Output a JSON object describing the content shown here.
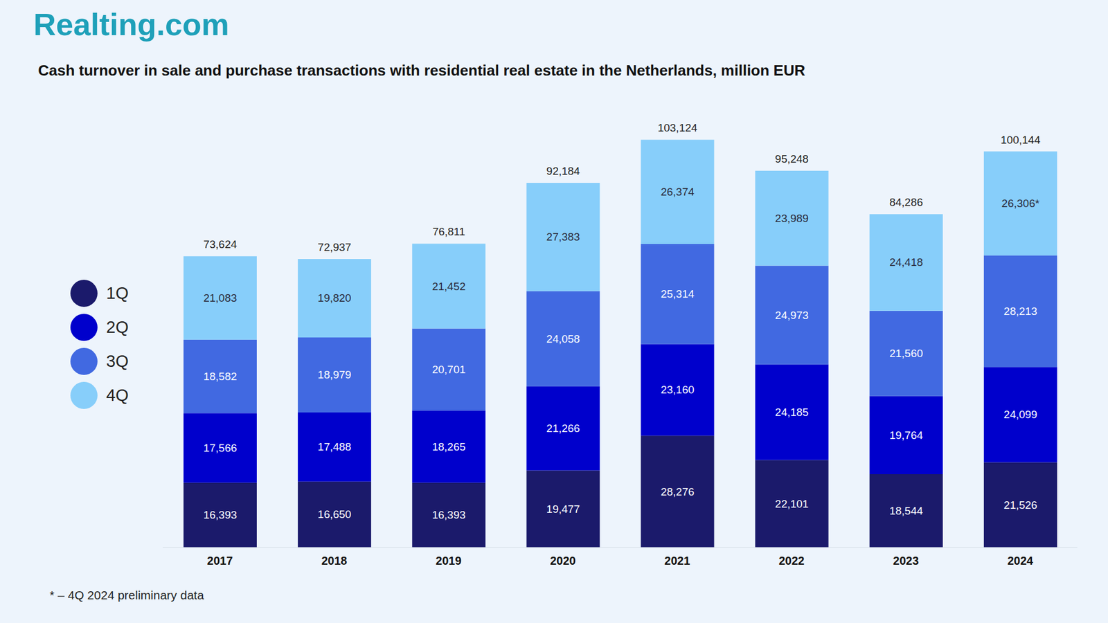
{
  "chart_data": {
    "type": "bar",
    "brand": "Realting.com",
    "title": "Cash turnover in sale and purchase transactions with residential real estate in the Netherlands, million EUR",
    "footnote": "* – 4Q 2024 preliminary data",
    "categories": [
      "2017",
      "2018",
      "2019",
      "2020",
      "2021",
      "2022",
      "2023",
      "2024"
    ],
    "series": [
      {
        "name": "1Q",
        "color": "#1b1a6b",
        "values": [
          16393,
          16650,
          16393,
          19477,
          28276,
          22101,
          18544,
          21526
        ],
        "value_labels": [
          "16,393",
          "16,650",
          "16,393",
          "19,477",
          "28,276",
          "22,101",
          "18,544",
          "21,526"
        ]
      },
      {
        "name": "2Q",
        "color": "#0000cc",
        "values": [
          17566,
          17488,
          18265,
          21266,
          23160,
          24185,
          19764,
          24099
        ],
        "value_labels": [
          "17,566",
          "17,488",
          "18,265",
          "21,266",
          "23,160",
          "24,185",
          "19,764",
          "24,099"
        ]
      },
      {
        "name": "3Q",
        "color": "#4169e1",
        "values": [
          18582,
          18979,
          20701,
          24058,
          25314,
          24973,
          21560,
          28213
        ],
        "value_labels": [
          "18,582",
          "18,979",
          "20,701",
          "24,058",
          "25,314",
          "24,973",
          "21,560",
          "28,213"
        ]
      },
      {
        "name": "4Q",
        "color": "#87cefa",
        "values": [
          21083,
          19820,
          21452,
          27383,
          26374,
          23989,
          24418,
          26306
        ],
        "value_labels": [
          "21,083",
          "19,820",
          "21,452",
          "27,383",
          "26,374",
          "23,989",
          "24,418",
          "26,306*"
        ]
      }
    ],
    "totals": {
      "values": [
        73624,
        72937,
        76811,
        92184,
        103124,
        95248,
        84286,
        100144
      ],
      "value_labels": [
        "73,624",
        "72,937",
        "76,811",
        "92,184",
        "103,124",
        "95,248",
        "84,286",
        "100,144"
      ]
    },
    "ylim": [
      0,
      110000
    ],
    "yticks": [
      0,
      110000
    ],
    "stacked": true,
    "data_labels": true,
    "grid": false,
    "tick_labels": "x"
  }
}
